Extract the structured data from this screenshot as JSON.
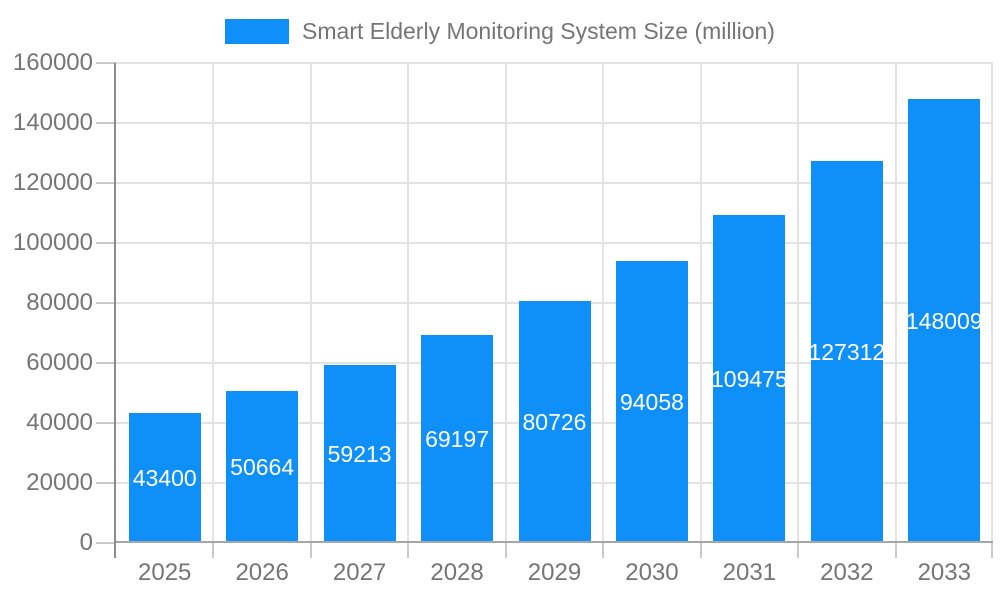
{
  "chart_data": {
    "type": "bar",
    "title": "Smart Elderly Monitoring System Size (million)",
    "categories": [
      "2025",
      "2026",
      "2027",
      "2028",
      "2029",
      "2030",
      "2031",
      "2032",
      "2033"
    ],
    "values": [
      43400,
      50664,
      59213,
      69197,
      80726,
      94058,
      109475,
      127312,
      148009
    ],
    "xlabel": "",
    "ylabel": "",
    "ylim": [
      0,
      160000
    ],
    "ytick_step": 20000,
    "ytick_labels": [
      "0",
      "20000",
      "40000",
      "60000",
      "80000",
      "100000",
      "120000",
      "140000",
      "160000"
    ],
    "grid": true,
    "legend_position": "top-center",
    "colors": {
      "bar": "#0e90f8",
      "value_label": "#ffffff",
      "axis_text": "#757575",
      "gridline": "#e3e3e3",
      "tick": "#c9c9c9",
      "x_axis_line": "#a6a6a6",
      "y_axis_line": "#8c8c8c",
      "background": "#ffffff"
    }
  }
}
